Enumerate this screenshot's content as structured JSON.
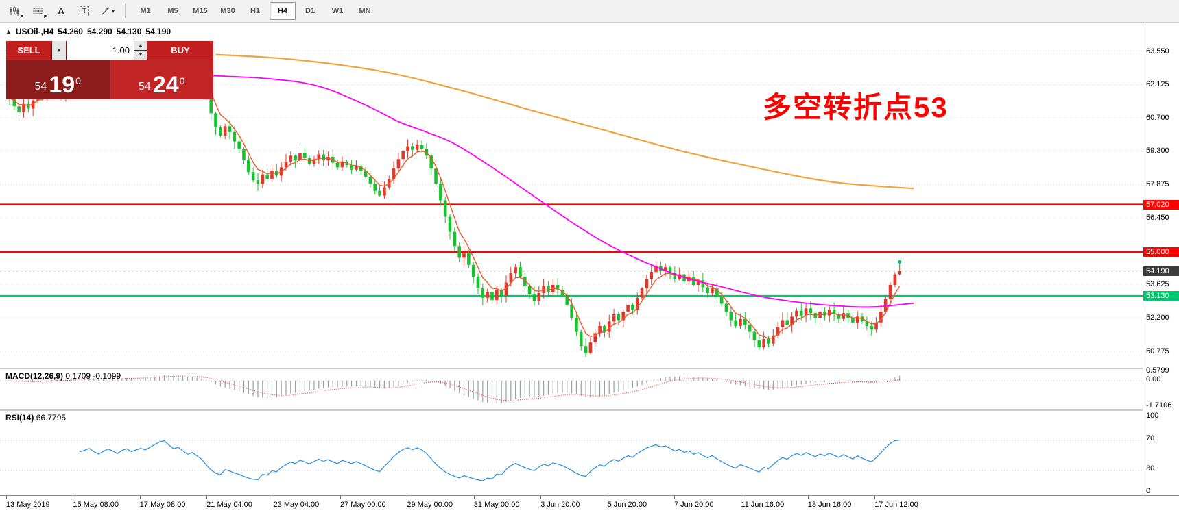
{
  "toolbar": {
    "icons": [
      {
        "name": "candlestick-chart-icon",
        "badge": "E"
      },
      {
        "name": "indicator-levels-icon",
        "badge": "F"
      },
      {
        "name": "font-icon",
        "glyph": "A"
      },
      {
        "name": "text-label-icon",
        "glyph": "T"
      },
      {
        "name": "drawing-tools-icon",
        "caret": "▾"
      }
    ],
    "timeframes": [
      "M1",
      "M5",
      "M15",
      "M30",
      "H1",
      "H4",
      "D1",
      "W1",
      "MN"
    ],
    "active_timeframe": "H4"
  },
  "symbol_bar": {
    "marker": "▲",
    "symbol": "USOil-,H4",
    "open": "54.260",
    "high": "54.290",
    "low": "54.130",
    "close": "54.190"
  },
  "trade_panel": {
    "sell_label": "SELL",
    "buy_label": "BUY",
    "volume": "1.00",
    "dropdown_caret": "▼",
    "step_up": "▲",
    "step_down": "▼",
    "bid": {
      "whole": "54",
      "pips": "19",
      "pipette": "0"
    },
    "ask": {
      "whole": "54",
      "pips": "24",
      "pipette": "0"
    }
  },
  "annotation": {
    "text": "多空转折点53",
    "color": "#ff0000"
  },
  "price_scale": {
    "labels": [
      {
        "text": "63.550",
        "value": 63.55
      },
      {
        "text": "62.125",
        "value": 62.125
      },
      {
        "text": "60.700",
        "value": 60.7
      },
      {
        "text": "59.300",
        "value": 59.3
      },
      {
        "text": "57.875",
        "value": 57.875
      },
      {
        "text": "56.450",
        "value": 56.45
      },
      {
        "text": "53.625",
        "value": 53.625
      },
      {
        "text": "52.200",
        "value": 52.2
      },
      {
        "text": "50.775",
        "value": 50.775
      }
    ],
    "badges": [
      {
        "text": "57.020",
        "value": 57.02,
        "bg": "#ff0000",
        "fg": "#ffffff",
        "name": "resistance-line-badge-57"
      },
      {
        "text": "55.000",
        "value": 55.0,
        "bg": "#ff0000",
        "fg": "#ffffff",
        "name": "resistance-line-badge-55"
      },
      {
        "text": "54.190",
        "value": 54.19,
        "bg": "#3c3c3c",
        "fg": "#ffffff",
        "name": "current-price-badge"
      },
      {
        "text": "53.130",
        "value": 53.13,
        "bg": "#00c86e",
        "fg": "#ffffff",
        "name": "support-line-badge-53"
      }
    ]
  },
  "time_axis": {
    "labels": [
      "13 May 2019",
      "15 May 08:00",
      "17 May 08:00",
      "21 May 04:00",
      "23 May 04:00",
      "27 May 00:00",
      "29 May 00:00",
      "31 May 00:00",
      "3 Jun 20:00",
      "5 Jun 20:00",
      "7 Jun 20:00",
      "11 Jun 16:00",
      "13 Jun 16:00",
      "17 Jun 12:00"
    ]
  },
  "macd_panel": {
    "label": "MACD(12,26,9)",
    "main_value": "0.1709",
    "signal_value": "-0.1099",
    "axis_labels": [
      {
        "text": "0.5799",
        "value": 0.5799
      },
      {
        "text": "0.00",
        "value": 0
      },
      {
        "text": "-1.7106",
        "value": -1.7106
      }
    ]
  },
  "rsi_panel": {
    "label": "RSI(14)",
    "value": "66.7795",
    "axis_labels": [
      {
        "text": "100",
        "value": 100
      },
      {
        "text": "70",
        "value": 70
      },
      {
        "text": "30",
        "value": 30
      },
      {
        "text": "0",
        "value": 0
      }
    ],
    "levels": [
      70,
      30
    ]
  },
  "chart_data": {
    "type": "candlestick",
    "symbol": "USOil-",
    "timeframe": "H4",
    "first_open": 61.8,
    "closes": [
      61.55,
      61.2,
      60.95,
      61.3,
      61.1,
      61.45,
      61.75,
      61.55,
      61.85,
      62.05,
      61.8,
      61.55,
      61.7,
      62.0,
      62.2,
      61.95,
      62.1,
      62.3,
      62.05,
      61.85,
      62.1,
      62.35,
      62.2,
      62.0,
      62.3,
      62.45,
      62.25,
      62.4,
      62.55,
      62.45,
      62.7,
      63.0,
      63.3,
      63.45,
      63.2,
      62.95,
      63.1,
      62.85,
      62.6,
      62.75,
      62.5,
      62.2,
      61.6,
      60.9,
      60.3,
      59.95,
      60.35,
      60.1,
      59.7,
      59.4,
      58.9,
      58.4,
      58.05,
      57.9,
      58.3,
      58.1,
      58.45,
      58.25,
      58.6,
      58.85,
      59.1,
      58.9,
      59.2,
      59.0,
      58.75,
      58.95,
      59.15,
      58.9,
      59.05,
      58.8,
      58.6,
      58.85,
      58.7,
      58.5,
      58.65,
      58.45,
      58.2,
      57.9,
      57.6,
      57.4,
      57.75,
      58.1,
      58.55,
      58.95,
      59.3,
      59.5,
      59.35,
      59.55,
      59.4,
      59.1,
      58.55,
      57.9,
      57.2,
      56.5,
      55.85,
      55.25,
      54.75,
      54.95,
      54.45,
      53.95,
      53.45,
      53.05,
      53.3,
      52.95,
      53.4,
      53.15,
      53.7,
      54.1,
      54.35,
      53.95,
      53.55,
      53.2,
      52.9,
      53.25,
      53.55,
      53.3,
      53.6,
      53.4,
      53.15,
      52.75,
      52.2,
      51.6,
      51.0,
      50.7,
      51.15,
      51.55,
      51.85,
      51.6,
      52.05,
      52.35,
      52.1,
      52.45,
      52.75,
      52.55,
      53.05,
      53.45,
      53.85,
      54.15,
      54.4,
      54.2,
      54.35,
      54.1,
      53.85,
      54.05,
      53.75,
      53.95,
      53.6,
      53.8,
      53.5,
      53.25,
      53.45,
      53.1,
      52.8,
      52.45,
      52.1,
      51.85,
      52.15,
      51.9,
      51.6,
      51.25,
      50.95,
      51.3,
      51.1,
      51.45,
      51.8,
      52.1,
      51.9,
      52.25,
      52.5,
      52.3,
      52.6,
      52.4,
      52.2,
      52.45,
      52.3,
      52.55,
      52.35,
      52.15,
      52.4,
      52.2,
      52.0,
      52.25,
      52.05,
      51.85,
      51.7,
      52.0,
      52.45,
      53.0,
      53.6,
      54.05,
      54.19
    ],
    "price_gridlines": [
      63.55,
      62.125,
      60.7,
      59.3,
      57.875,
      56.45,
      55.025,
      53.625,
      52.2,
      50.775
    ],
    "hlines": [
      {
        "value": 57.02,
        "color": "#ff0000",
        "width": 2.5
      },
      {
        "value": 55.0,
        "color": "#ff0000",
        "width": 2.5
      },
      {
        "value": 53.13,
        "color": "#00c86e",
        "width": 2.5
      }
    ],
    "current_price": 54.19,
    "marker": {
      "index": 190,
      "price": 54.58,
      "color": "#00c86e"
    },
    "ma_orange": [
      [
        44,
        63.4
      ],
      [
        60,
        63.2
      ],
      [
        79,
        62.7
      ],
      [
        95,
        61.95
      ],
      [
        111,
        61.05
      ],
      [
        127,
        60.18
      ],
      [
        144,
        59.27
      ],
      [
        160,
        58.56
      ],
      [
        176,
        57.97
      ],
      [
        193,
        57.7
      ]
    ],
    "ma_magenta": [
      [
        41,
        62.52
      ],
      [
        55,
        62.38
      ],
      [
        66,
        62.05
      ],
      [
        76,
        61.25
      ],
      [
        83,
        60.55
      ],
      [
        89,
        60.1
      ],
      [
        95,
        59.6
      ],
      [
        103,
        58.6
      ],
      [
        111,
        57.5
      ],
      [
        119,
        56.4
      ],
      [
        127,
        55.4
      ],
      [
        135,
        54.62
      ],
      [
        144,
        53.92
      ],
      [
        152,
        53.52
      ],
      [
        160,
        53.12
      ],
      [
        168,
        52.87
      ],
      [
        176,
        52.72
      ],
      [
        184,
        52.66
      ],
      [
        193,
        52.82
      ]
    ],
    "indicators": {
      "fast_ema_period": 5,
      "macd": [
        12,
        26,
        9
      ],
      "rsi_period": 14
    },
    "colors": {
      "bull": "#e0382a",
      "bear": "#17c22e",
      "ma_fast": "#f0582a",
      "ma_orange": "#eea43c",
      "ma_magenta": "#ff00ff",
      "macd_hist": "#9aa0a6",
      "macd_signal": "#ff2222",
      "rsi": "#3193dc",
      "grid": "#d6d6d6"
    }
  }
}
